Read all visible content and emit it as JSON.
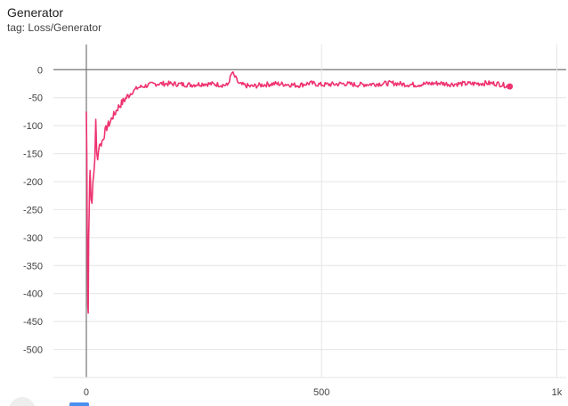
{
  "header": {
    "title": "Generator",
    "subtitle": "tag: Loss/Generator"
  },
  "colors": {
    "series": "#ee3370",
    "grid": "#e4e4e4",
    "axis": "#9e9e9e",
    "text": "#424242"
  },
  "chart_data": {
    "type": "line",
    "title": "Generator",
    "subtitle": "tag: Loss/Generator",
    "xlabel": "",
    "ylabel": "",
    "xlim": [
      -70,
      1020
    ],
    "ylim": [
      -550,
      45
    ],
    "x_ticks": [
      0,
      500,
      1000
    ],
    "x_tick_labels": [
      "0",
      "500",
      "1k"
    ],
    "y_ticks": [
      0,
      -50,
      -100,
      -150,
      -200,
      -250,
      -300,
      -350,
      -400,
      -450,
      -500
    ],
    "y_tick_labels": [
      "0",
      "-50",
      "-100",
      "-150",
      "-200",
      "-250",
      "-300",
      "-350",
      "-400",
      "-450",
      "-500"
    ],
    "grid": true,
    "series": [
      {
        "values_x": [
          0,
          1,
          2,
          3,
          4,
          5,
          6,
          7,
          8,
          10,
          12,
          14,
          16,
          18,
          20,
          22,
          24,
          26,
          28,
          30,
          35,
          40,
          45,
          50,
          55,
          60,
          65,
          70,
          75,
          80,
          85,
          90,
          100,
          110,
          120,
          130,
          140,
          150,
          175,
          200,
          225,
          250,
          275,
          300,
          310,
          325,
          350,
          375,
          400,
          425,
          450,
          475,
          500,
          525,
          550,
          575,
          600,
          625,
          650,
          675,
          700,
          725,
          750,
          775,
          800,
          825,
          850,
          875,
          900
        ],
        "values_y": [
          -75,
          -150,
          -300,
          -420,
          -435,
          -300,
          -250,
          -200,
          -180,
          -230,
          -240,
          -200,
          -185,
          -160,
          -90,
          -150,
          -155,
          -145,
          -130,
          -135,
          -125,
          -110,
          -100,
          -95,
          -85,
          -80,
          -70,
          -65,
          -60,
          -55,
          -50,
          -45,
          -38,
          -32,
          -30,
          -28,
          -26,
          -25,
          -25,
          -26,
          -27,
          -25,
          -26,
          -28,
          -5,
          -26,
          -30,
          -27,
          -25,
          -26,
          -28,
          -24,
          -27,
          -26,
          -25,
          -27,
          -26,
          -25,
          -24,
          -26,
          -27,
          -25,
          -24,
          -26,
          -25,
          -25,
          -24,
          -25,
          -30
        ]
      }
    ]
  }
}
